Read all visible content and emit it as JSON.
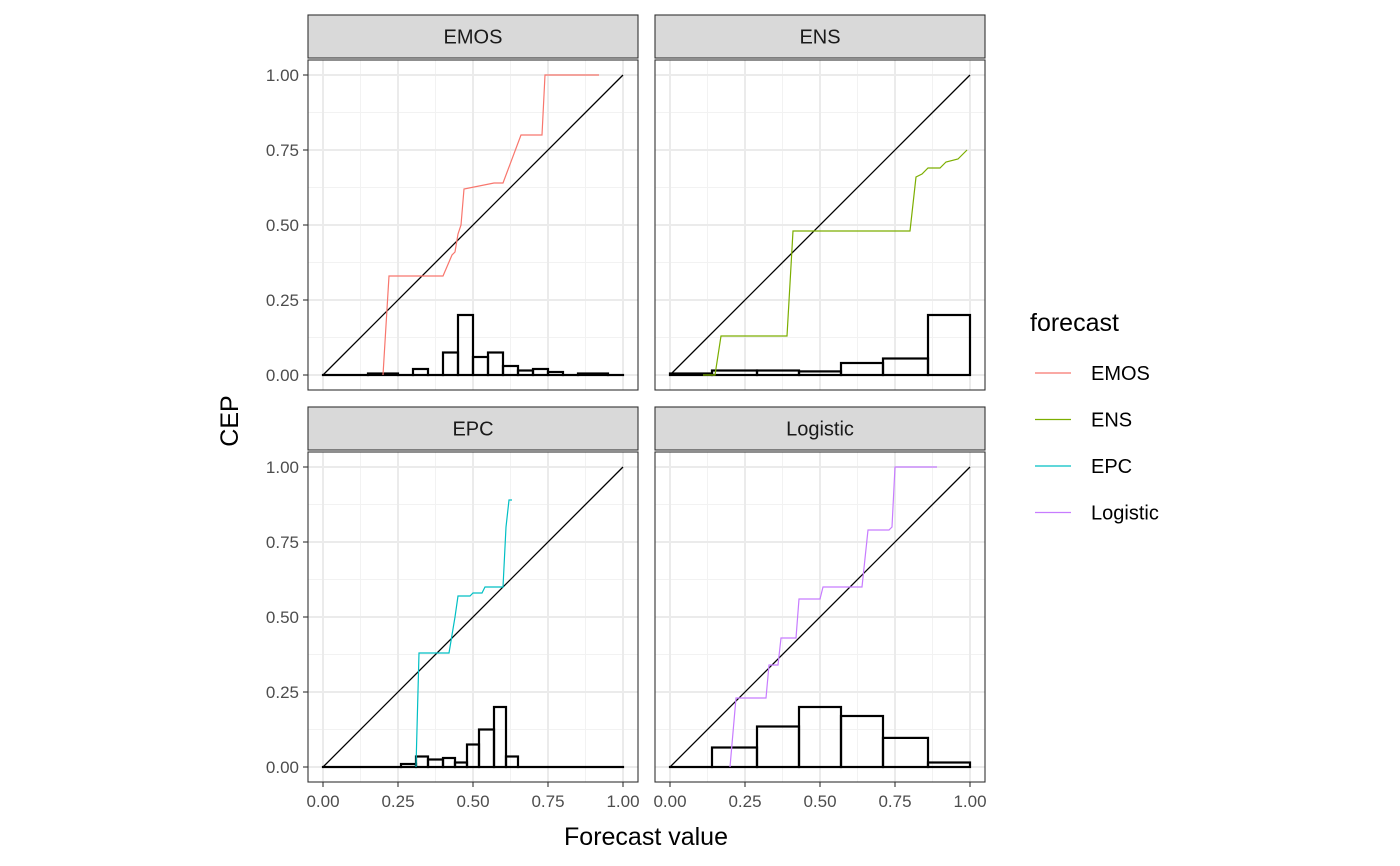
{
  "chart_data": {
    "type": "line",
    "chart_kind": "faceted reliability diagram (step CEP curve, diagonal reference, histogram of forecast values)",
    "xlabel": "Forecast value",
    "ylabel": "CEP",
    "xlim": [
      0,
      1
    ],
    "ylim": [
      0,
      1
    ],
    "x_ticks": [
      "0.00",
      "0.25",
      "0.50",
      "0.75",
      "1.00"
    ],
    "y_ticks": [
      "0.00",
      "0.25",
      "0.50",
      "0.75",
      "1.00"
    ],
    "grid": true,
    "legend": {
      "title": "forecast",
      "position": "right",
      "entries": [
        "EMOS",
        "ENS",
        "EPC",
        "Logistic"
      ]
    },
    "colors": {
      "EMOS": "#F8766D",
      "ENS": "#7CAE00",
      "EPC": "#00BFC4",
      "Logistic": "#C77CFF",
      "strip_bg": "#D9D9D9",
      "panel_border": "#333333",
      "grid": "#EBEBEB"
    },
    "panels": [
      {
        "name": "EMOS",
        "cep": [
          [
            0.2,
            0.0
          ],
          [
            0.22,
            0.33
          ],
          [
            0.4,
            0.33
          ],
          [
            0.43,
            0.4
          ],
          [
            0.44,
            0.41
          ],
          [
            0.45,
            0.47
          ],
          [
            0.46,
            0.5
          ],
          [
            0.47,
            0.62
          ],
          [
            0.57,
            0.64
          ],
          [
            0.6,
            0.64
          ],
          [
            0.66,
            0.8
          ],
          [
            0.73,
            0.8
          ],
          [
            0.74,
            1.0
          ],
          [
            0.92,
            1.0
          ]
        ],
        "histogram": [
          {
            "x0": 0.0,
            "x1": 0.15,
            "y": 0.0
          },
          {
            "x0": 0.15,
            "x1": 0.25,
            "y": 0.005
          },
          {
            "x0": 0.25,
            "x1": 0.3,
            "y": 0.0
          },
          {
            "x0": 0.3,
            "x1": 0.35,
            "y": 0.02
          },
          {
            "x0": 0.35,
            "x1": 0.4,
            "y": 0.0
          },
          {
            "x0": 0.4,
            "x1": 0.45,
            "y": 0.075
          },
          {
            "x0": 0.45,
            "x1": 0.5,
            "y": 0.2
          },
          {
            "x0": 0.5,
            "x1": 0.55,
            "y": 0.06
          },
          {
            "x0": 0.55,
            "x1": 0.6,
            "y": 0.075
          },
          {
            "x0": 0.6,
            "x1": 0.65,
            "y": 0.03
          },
          {
            "x0": 0.65,
            "x1": 0.7,
            "y": 0.015
          },
          {
            "x0": 0.7,
            "x1": 0.75,
            "y": 0.02
          },
          {
            "x0": 0.75,
            "x1": 0.8,
            "y": 0.01
          },
          {
            "x0": 0.8,
            "x1": 0.85,
            "y": 0.0
          },
          {
            "x0": 0.85,
            "x1": 0.95,
            "y": 0.005
          },
          {
            "x0": 0.95,
            "x1": 1.0,
            "y": 0.0
          }
        ]
      },
      {
        "name": "ENS",
        "cep": [
          [
            0.11,
            0.0
          ],
          [
            0.15,
            0.0
          ],
          [
            0.17,
            0.13
          ],
          [
            0.39,
            0.13
          ],
          [
            0.41,
            0.48
          ],
          [
            0.8,
            0.48
          ],
          [
            0.82,
            0.66
          ],
          [
            0.84,
            0.67
          ],
          [
            0.86,
            0.69
          ],
          [
            0.9,
            0.69
          ],
          [
            0.92,
            0.71
          ],
          [
            0.96,
            0.72
          ],
          [
            0.99,
            0.75
          ]
        ],
        "histogram": [
          {
            "x0": 0.0,
            "x1": 0.14,
            "y": 0.005
          },
          {
            "x0": 0.14,
            "x1": 0.29,
            "y": 0.015
          },
          {
            "x0": 0.29,
            "x1": 0.43,
            "y": 0.015
          },
          {
            "x0": 0.43,
            "x1": 0.57,
            "y": 0.012
          },
          {
            "x0": 0.57,
            "x1": 0.71,
            "y": 0.04
          },
          {
            "x0": 0.71,
            "x1": 0.86,
            "y": 0.055
          },
          {
            "x0": 0.86,
            "x1": 1.0,
            "y": 0.2
          }
        ]
      },
      {
        "name": "EPC",
        "cep": [
          [
            0.31,
            0.0
          ],
          [
            0.32,
            0.38
          ],
          [
            0.42,
            0.38
          ],
          [
            0.44,
            0.5
          ],
          [
            0.45,
            0.57
          ],
          [
            0.49,
            0.57
          ],
          [
            0.5,
            0.58
          ],
          [
            0.53,
            0.58
          ],
          [
            0.54,
            0.6
          ],
          [
            0.6,
            0.6
          ],
          [
            0.61,
            0.8
          ],
          [
            0.62,
            0.89
          ],
          [
            0.63,
            0.89
          ]
        ],
        "histogram": [
          {
            "x0": 0.0,
            "x1": 0.26,
            "y": 0.0
          },
          {
            "x0": 0.26,
            "x1": 0.31,
            "y": 0.01
          },
          {
            "x0": 0.31,
            "x1": 0.35,
            "y": 0.035
          },
          {
            "x0": 0.35,
            "x1": 0.4,
            "y": 0.025
          },
          {
            "x0": 0.4,
            "x1": 0.44,
            "y": 0.03
          },
          {
            "x0": 0.44,
            "x1": 0.48,
            "y": 0.015
          },
          {
            "x0": 0.48,
            "x1": 0.52,
            "y": 0.075
          },
          {
            "x0": 0.52,
            "x1": 0.57,
            "y": 0.125
          },
          {
            "x0": 0.57,
            "x1": 0.61,
            "y": 0.2
          },
          {
            "x0": 0.61,
            "x1": 0.65,
            "y": 0.035
          },
          {
            "x0": 0.65,
            "x1": 1.0,
            "y": 0.0
          }
        ]
      },
      {
        "name": "Logistic",
        "cep": [
          [
            0.2,
            0.0
          ],
          [
            0.22,
            0.23
          ],
          [
            0.32,
            0.23
          ],
          [
            0.33,
            0.34
          ],
          [
            0.36,
            0.34
          ],
          [
            0.37,
            0.43
          ],
          [
            0.42,
            0.43
          ],
          [
            0.43,
            0.56
          ],
          [
            0.5,
            0.56
          ],
          [
            0.51,
            0.6
          ],
          [
            0.64,
            0.6
          ],
          [
            0.66,
            0.79
          ],
          [
            0.73,
            0.79
          ],
          [
            0.74,
            0.8
          ],
          [
            0.75,
            1.0
          ],
          [
            0.89,
            1.0
          ]
        ],
        "histogram": [
          {
            "x0": 0.0,
            "x1": 0.14,
            "y": 0.0
          },
          {
            "x0": 0.14,
            "x1": 0.29,
            "y": 0.065
          },
          {
            "x0": 0.29,
            "x1": 0.43,
            "y": 0.135
          },
          {
            "x0": 0.43,
            "x1": 0.57,
            "y": 0.2
          },
          {
            "x0": 0.57,
            "x1": 0.71,
            "y": 0.17
          },
          {
            "x0": 0.71,
            "x1": 0.86,
            "y": 0.097
          },
          {
            "x0": 0.86,
            "x1": 1.0,
            "y": 0.015
          }
        ]
      }
    ]
  }
}
